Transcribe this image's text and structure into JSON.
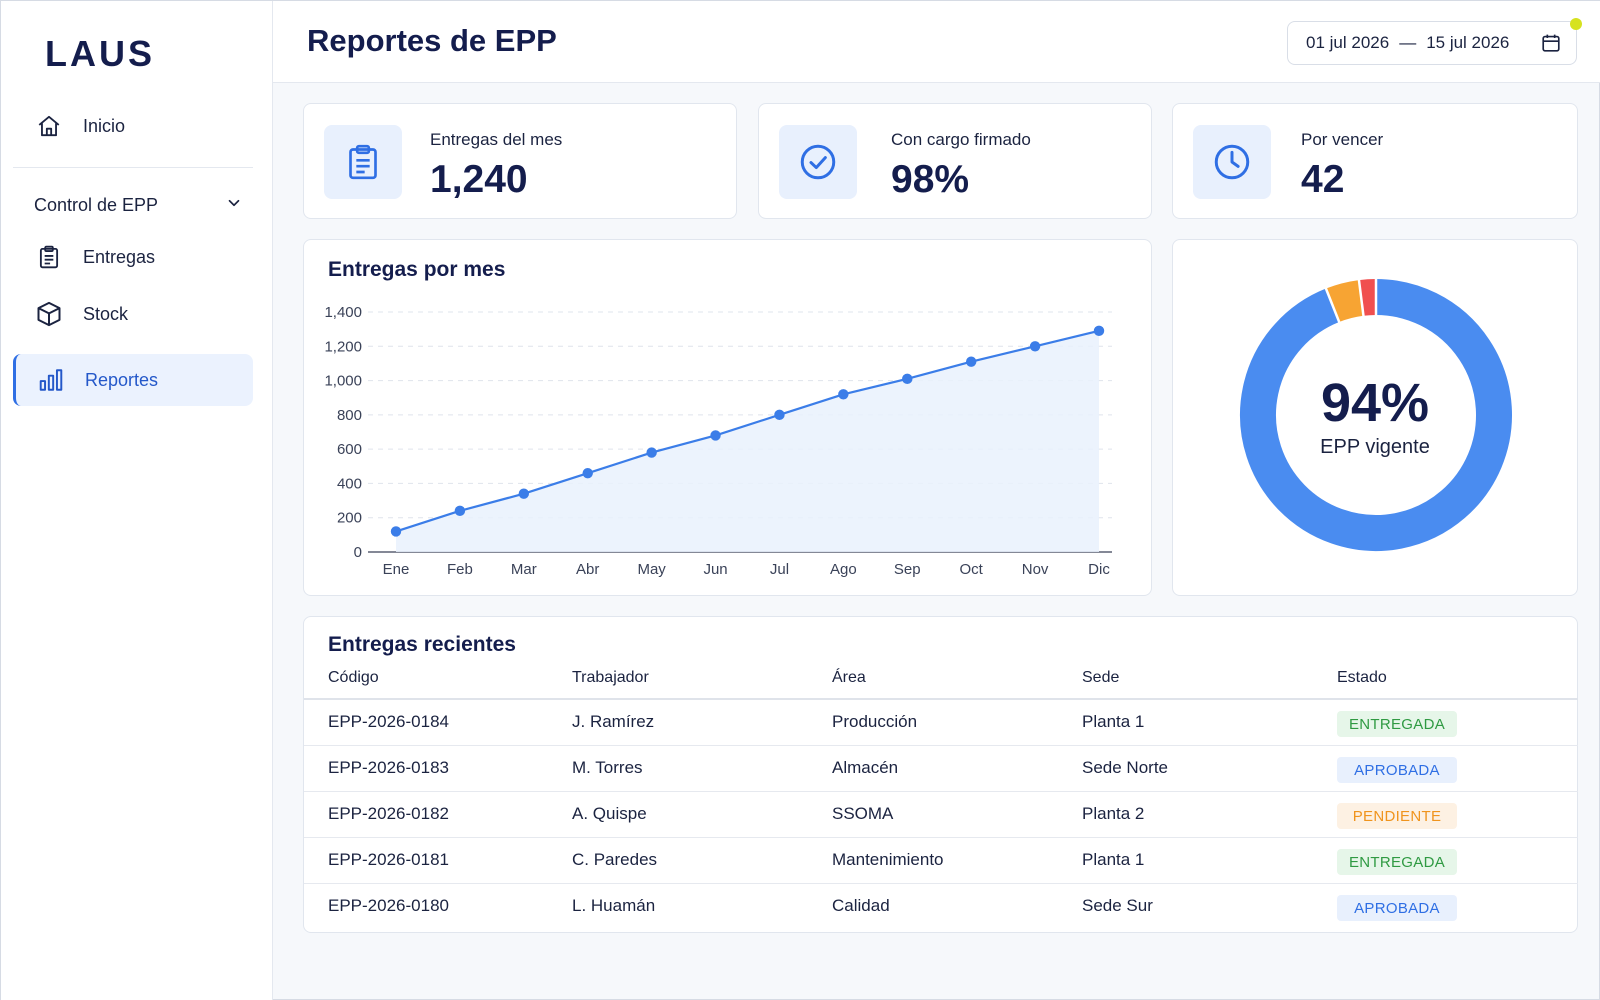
{
  "app": {
    "logo": "LAUS"
  },
  "sidebar": {
    "home": {
      "label": "Inicio",
      "icon": "home-icon"
    },
    "group": {
      "label": "Control de EPP",
      "icon": "chevron-down-icon"
    },
    "items": [
      {
        "label": "Entregas",
        "icon": "clipboard-icon"
      },
      {
        "label": "Stock",
        "icon": "box-icon"
      },
      {
        "label": "Reportes",
        "icon": "bar-chart-icon",
        "active": true
      }
    ]
  },
  "header": {
    "title": "Reportes de EPP",
    "date_from": "01 jul 2026",
    "date_sep": "—",
    "date_to": "15 jul 2026"
  },
  "kpis": [
    {
      "label": "Entregas del mes",
      "value": "1,240",
      "icon": "clipboard-icon"
    },
    {
      "label": "Con cargo firmado",
      "value": "98%",
      "icon": "check-circle-icon"
    },
    {
      "label": "Por vencer",
      "value": "42",
      "icon": "clock-icon"
    }
  ],
  "chart_data": [
    {
      "type": "area",
      "title": "Entregas por mes",
      "categories": [
        "Ene",
        "Feb",
        "Mar",
        "Abr",
        "May",
        "Jun",
        "Jul",
        "Ago",
        "Sep",
        "Oct",
        "Nov",
        "Dic"
      ],
      "series": [
        {
          "values": [
            120,
            240,
            340,
            460,
            580,
            680,
            800,
            920,
            1010,
            1110,
            1200,
            1290
          ]
        }
      ],
      "ylim": [
        0,
        1400
      ],
      "yticks": [
        "0",
        "200",
        "400",
        "600",
        "800",
        "1,000",
        "1,200",
        "1,400"
      ],
      "grid": true,
      "color": "#3b7de8"
    },
    {
      "type": "pie",
      "center_value": "94%",
      "center_label": "EPP vigente",
      "slices": [
        {
          "value": 94,
          "color": "#4a8cf0"
        },
        {
          "value": 4,
          "color": "#f7a433"
        },
        {
          "value": 2,
          "color": "#f04f4f"
        }
      ]
    }
  ],
  "recent": {
    "title": "Entregas recientes",
    "columns": [
      "Código",
      "Trabajador",
      "Área",
      "Sede",
      "Estado"
    ],
    "rows": [
      {
        "code": "EPP-2026-0184",
        "worker": "J. Ramírez",
        "area": "Producción",
        "site": "Planta 1",
        "status": "ENTREGADA",
        "status_key": "entregada"
      },
      {
        "code": "EPP-2026-0183",
        "worker": "M. Torres",
        "area": "Almacén",
        "site": "Sede Norte",
        "status": "APROBADA",
        "status_key": "aprobada"
      },
      {
        "code": "EPP-2026-0182",
        "worker": "A. Quispe",
        "area": "SSOMA",
        "site": "Planta 2",
        "status": "PENDIENTE",
        "status_key": "pendiente"
      },
      {
        "code": "EPP-2026-0181",
        "worker": "C. Paredes",
        "area": "Mantenimiento",
        "site": "Planta 1",
        "status": "ENTREGADA",
        "status_key": "entregada"
      },
      {
        "code": "EPP-2026-0180",
        "worker": "L. Huamán",
        "area": "Calidad",
        "site": "Sede Sur",
        "status": "APROBADA",
        "status_key": "aprobada"
      }
    ]
  },
  "colors": {
    "accent": "#2f6fe4",
    "navy": "#141d4d",
    "active_bg": "#ebf2fe"
  }
}
